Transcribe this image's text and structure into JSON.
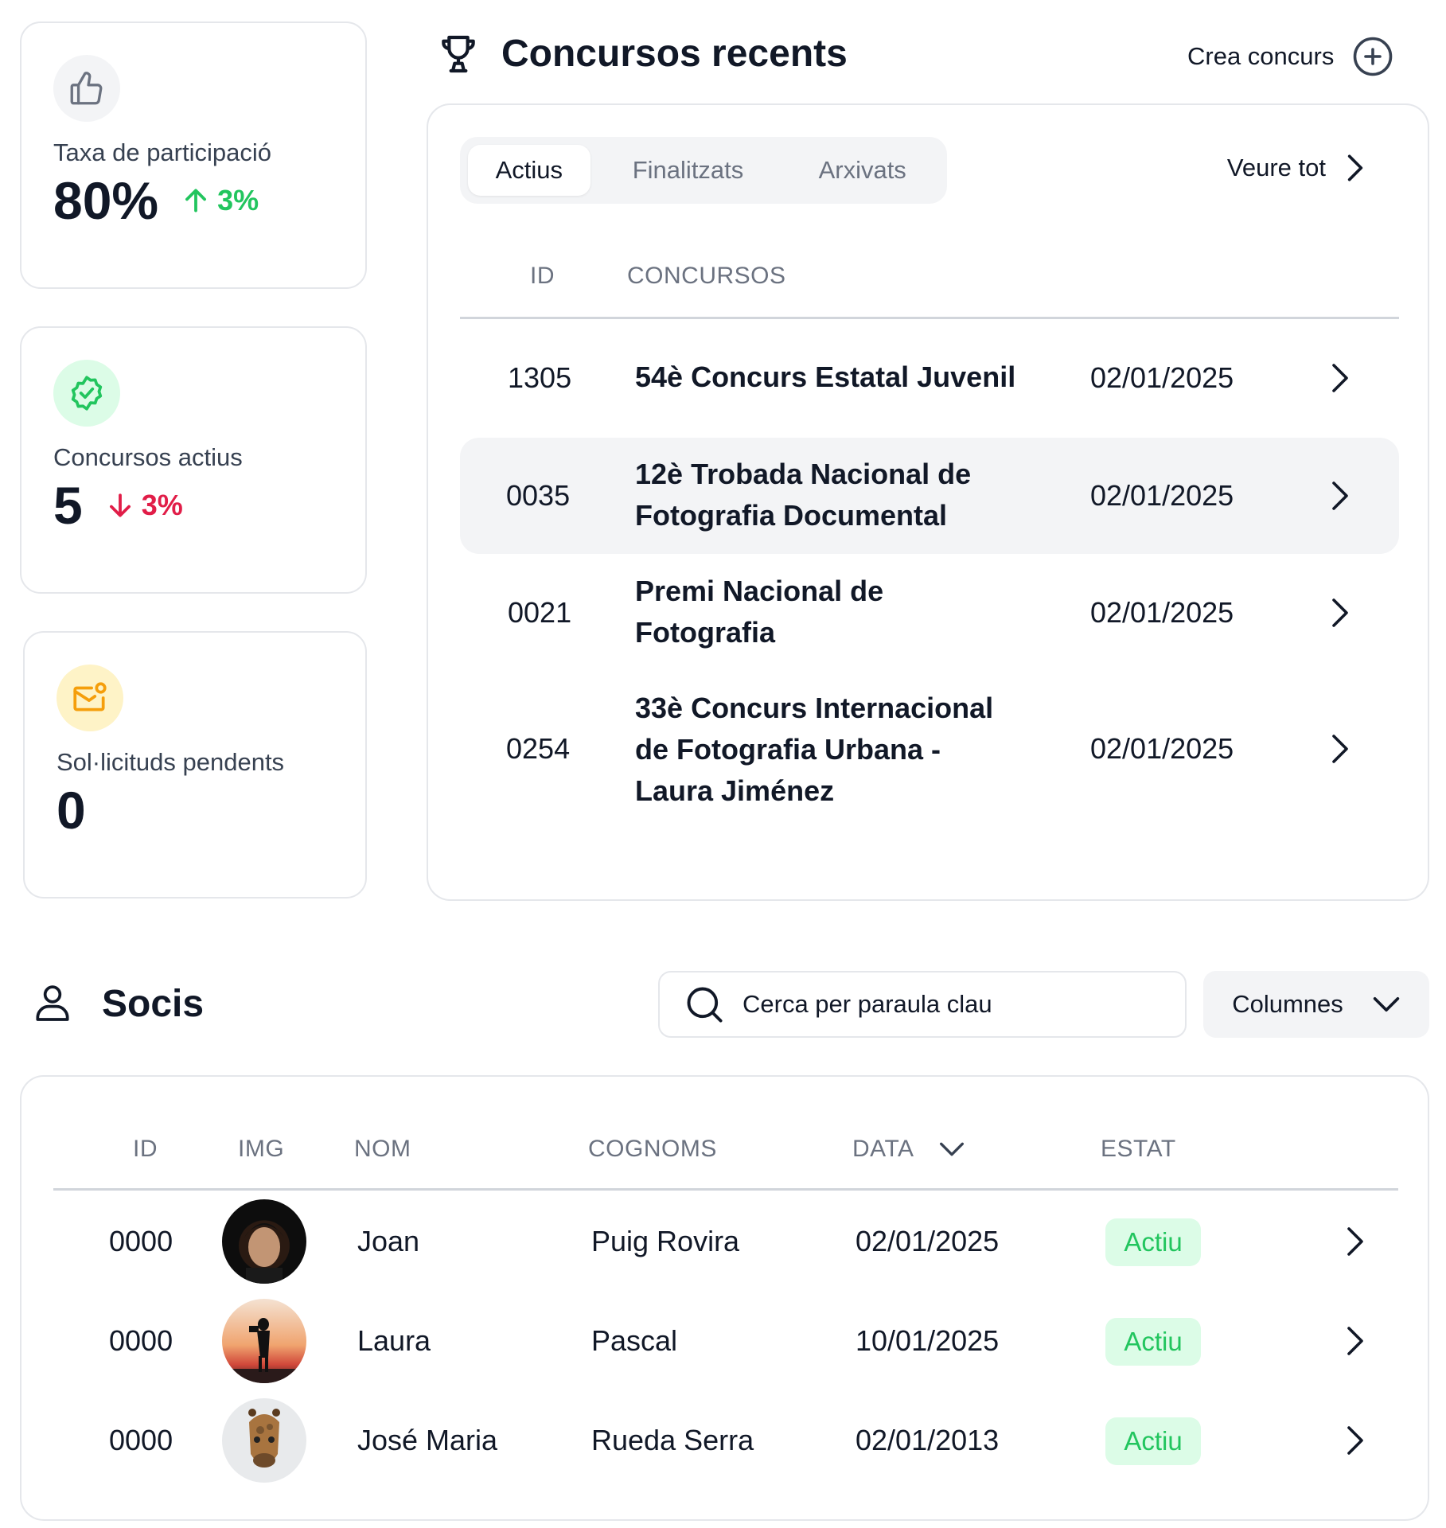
{
  "stats": [
    {
      "label": "Taxa de participació",
      "value": "80%",
      "delta": "3%",
      "direction": "up",
      "icon": "thumbs-up-icon",
      "icon_bg": "#f3f4f6",
      "icon_color": "#6b7280"
    },
    {
      "label": "Concursos actius",
      "value": "5",
      "delta": "3%",
      "direction": "down",
      "icon": "verified-badge-icon",
      "icon_bg": "#dcfce7",
      "icon_color": "#22c55e"
    },
    {
      "label": "Sol·licituds pendents",
      "value": "0",
      "delta": "",
      "direction": "",
      "icon": "mail-notification-icon",
      "icon_bg": "#fef3c7",
      "icon_color": "#f59e0b"
    }
  ],
  "contests": {
    "title": "Concursos recents",
    "create_label": "Crea concurs",
    "tabs": [
      "Actius",
      "Finalitzats",
      "Arxivats"
    ],
    "active_tab": "Actius",
    "see_all": "Veure tot",
    "headers": {
      "id": "ID",
      "name": "CONCURSOS"
    },
    "rows": [
      {
        "id": "1305",
        "name": "54è Concurs Estatal Juvenil",
        "date": "02/01/2025"
      },
      {
        "id": "0035",
        "name": "12è Trobada Nacional de Fotografia Documental",
        "date": "02/01/2025"
      },
      {
        "id": "0021",
        "name": "Premi Nacional de Fotografia",
        "date": "02/01/2025"
      },
      {
        "id": "0254",
        "name": "33è Concurs Internacional de Fotografia Urbana - Laura Jiménez",
        "date": "02/01/2025"
      }
    ]
  },
  "members": {
    "title": "Socis",
    "search_placeholder": "Cerca per paraula clau",
    "columns_label": "Columnes",
    "headers": {
      "id": "ID",
      "img": "IMG",
      "name": "NOM",
      "surname": "COGNOMS",
      "date": "DATA",
      "status": "ESTAT"
    },
    "rows": [
      {
        "id": "0000",
        "name": "Joan",
        "surname": "Puig Rovira",
        "date": "02/01/2025",
        "status": "Actiu"
      },
      {
        "id": "0000",
        "name": "Laura",
        "surname": "Pascal",
        "date": "10/01/2025",
        "status": "Actiu"
      },
      {
        "id": "0000",
        "name": "José Maria",
        "surname": "Rueda Serra",
        "date": "02/01/2013",
        "status": "Actiu"
      }
    ]
  },
  "colors": {
    "accent_green": "#22c55e",
    "accent_red": "#e11d48",
    "badge_bg": "#dcfce7",
    "border": "#e5e7eb"
  }
}
